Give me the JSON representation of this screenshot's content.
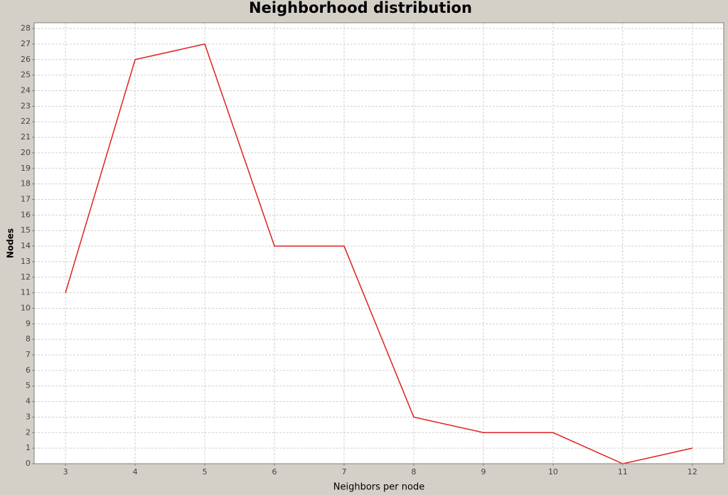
{
  "chart_data": {
    "type": "line",
    "title": "Neighborhood distribution",
    "x_label": "Neighbors per node",
    "y_label": "Nodes",
    "x": [
      3,
      4,
      5,
      6,
      7,
      8,
      9,
      10,
      11,
      12
    ],
    "series": [
      {
        "name": "Nodes",
        "color": "#e02020",
        "values": [
          11,
          26,
          27,
          14,
          14,
          3,
          2,
          2,
          0,
          1
        ]
      }
    ],
    "xlim": [
      2.55,
      12.45
    ],
    "xticks": [
      3,
      4,
      5,
      6,
      7,
      8,
      9,
      10,
      11,
      12
    ],
    "ylim": [
      0,
      28.37
    ],
    "yticks": [
      0,
      1,
      2,
      3,
      4,
      5,
      6,
      7,
      8,
      9,
      10,
      11,
      12,
      13,
      14,
      15,
      16,
      17,
      18,
      19,
      20,
      21,
      22,
      23,
      24,
      25,
      26,
      27,
      28
    ],
    "grid": true
  }
}
